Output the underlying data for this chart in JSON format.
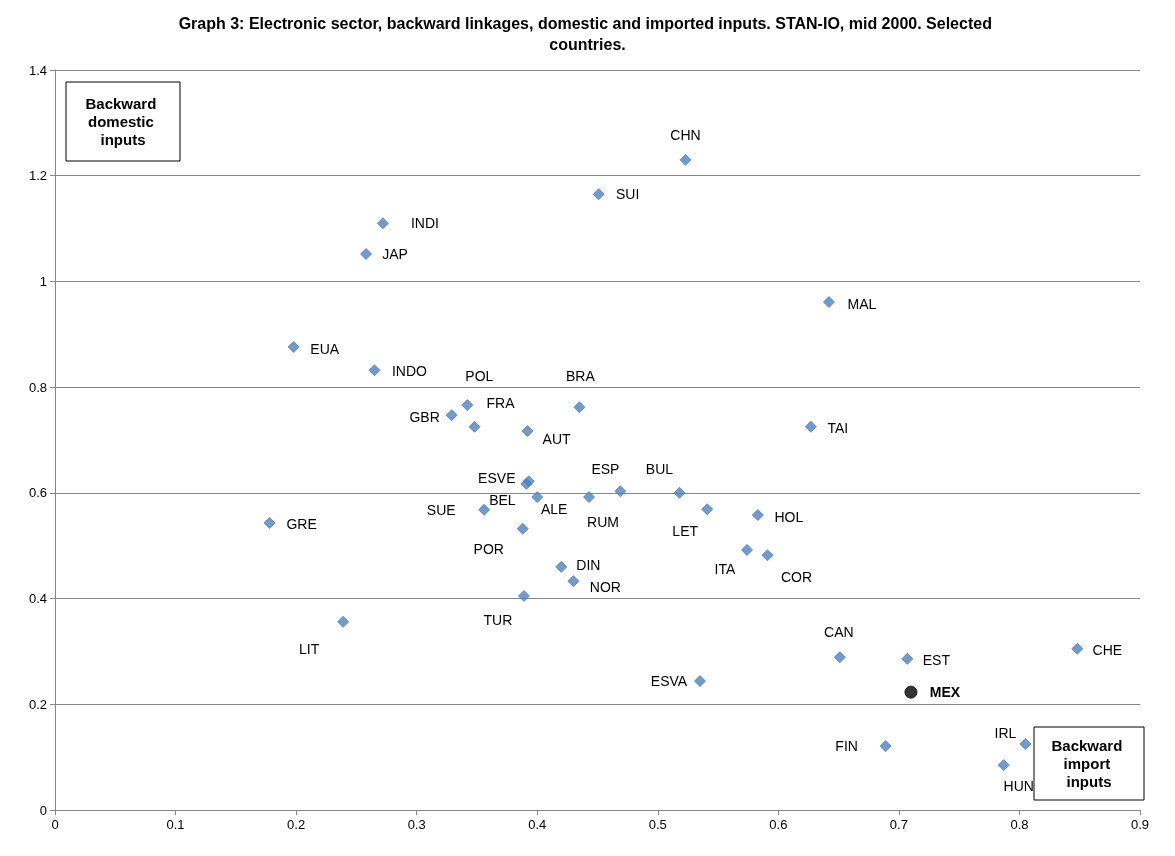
{
  "chart_data": {
    "type": "scatter",
    "title": "Graph 3: Electronic sector, backward linkages, domestic and imported inputs. STAN-IO, mid 2000. Selected countries.",
    "ylabel": "Backward domestic inputs",
    "xlabel": "Backward import inputs",
    "xlim": [
      0,
      0.9
    ],
    "xticks": [
      0,
      0.1,
      0.2,
      0.3,
      0.4,
      0.5,
      0.6,
      0.7,
      0.8,
      0.9
    ],
    "ylim": [
      0,
      1.4
    ],
    "yticks": [
      0,
      0.2,
      0.4,
      0.6,
      0.8,
      1,
      1.2,
      1.4
    ],
    "grid": "y",
    "series": [
      {
        "color": "#4f81bd",
        "marker": "diamond",
        "x": [
          0.523,
          0.451,
          0.272,
          0.258,
          0.642,
          0.198,
          0.265,
          0.342,
          0.435,
          0.329,
          0.348,
          0.392,
          0.627,
          0.393,
          0.391,
          0.4,
          0.469,
          0.443,
          0.518,
          0.541,
          0.356,
          0.583,
          0.178,
          0.388,
          0.574,
          0.591,
          0.42,
          0.43,
          0.389,
          0.239,
          0.651,
          0.707,
          0.848,
          0.535,
          0.689,
          0.805,
          0.787
        ],
        "values": [
          1.23,
          1.165,
          1.11,
          1.052,
          0.961,
          0.876,
          0.832,
          0.766,
          0.762,
          0.747,
          0.725,
          0.717,
          0.725,
          0.622,
          0.617,
          0.592,
          0.603,
          0.592,
          0.6,
          0.569,
          0.568,
          0.558,
          0.543,
          0.532,
          0.492,
          0.482,
          0.46,
          0.433,
          0.405,
          0.356,
          0.289,
          0.286,
          0.305,
          0.244,
          0.121,
          0.125,
          0.085
        ]
      },
      {
        "color": "#000000",
        "marker": "circle",
        "x": [
          0.71
        ],
        "values": [
          0.223
        ]
      }
    ],
    "annotations": [
      {
        "text": "CHN",
        "x": 0.523,
        "y": 1.23
      },
      {
        "text": "SUI",
        "x": 0.451,
        "y": 1.165
      },
      {
        "text": "INDI",
        "x": 0.272,
        "y": 1.11
      },
      {
        "text": "JAP",
        "x": 0.258,
        "y": 1.052
      },
      {
        "text": "MAL",
        "x": 0.642,
        "y": 0.961
      },
      {
        "text": "EUA",
        "x": 0.198,
        "y": 0.876
      },
      {
        "text": "INDO",
        "x": 0.265,
        "y": 0.832
      },
      {
        "text": "POL",
        "x": 0.342,
        "y": 0.766
      },
      {
        "text": "BRA",
        "x": 0.435,
        "y": 0.762
      },
      {
        "text": "GBR",
        "x": 0.329,
        "y": 0.747
      },
      {
        "text": "FRA",
        "x": 0.348,
        "y": 0.725
      },
      {
        "text": "AUT",
        "x": 0.392,
        "y": 0.717
      },
      {
        "text": "TAI",
        "x": 0.627,
        "y": 0.725
      },
      {
        "text": "ESVE",
        "x": 0.393,
        "y": 0.622
      },
      {
        "text": "BEL",
        "x": 0.391,
        "y": 0.617
      },
      {
        "text": "ALE",
        "x": 0.4,
        "y": 0.592
      },
      {
        "text": "ESP",
        "x": 0.469,
        "y": 0.603
      },
      {
        "text": "RUM",
        "x": 0.443,
        "y": 0.592
      },
      {
        "text": "BUL",
        "x": 0.518,
        "y": 0.6
      },
      {
        "text": "LET",
        "x": 0.541,
        "y": 0.569
      },
      {
        "text": "SUE",
        "x": 0.356,
        "y": 0.568
      },
      {
        "text": "HOL",
        "x": 0.583,
        "y": 0.558
      },
      {
        "text": "GRE",
        "x": 0.178,
        "y": 0.543
      },
      {
        "text": "POR",
        "x": 0.388,
        "y": 0.532
      },
      {
        "text": "ITA",
        "x": 0.574,
        "y": 0.492
      },
      {
        "text": "COR",
        "x": 0.591,
        "y": 0.482
      },
      {
        "text": "DIN",
        "x": 0.42,
        "y": 0.46
      },
      {
        "text": "NOR",
        "x": 0.43,
        "y": 0.433
      },
      {
        "text": "TUR",
        "x": 0.389,
        "y": 0.405
      },
      {
        "text": "LIT",
        "x": 0.239,
        "y": 0.356
      },
      {
        "text": "CAN",
        "x": 0.651,
        "y": 0.289
      },
      {
        "text": "EST",
        "x": 0.707,
        "y": 0.286
      },
      {
        "text": "CHE",
        "x": 0.848,
        "y": 0.305
      },
      {
        "text": "ESVA",
        "x": 0.535,
        "y": 0.244
      },
      {
        "text": "FIN",
        "x": 0.689,
        "y": 0.121
      },
      {
        "text": "IRL",
        "x": 0.805,
        "y": 0.125
      },
      {
        "text": "HUN",
        "x": 0.787,
        "y": 0.085
      },
      {
        "text": "MEX",
        "x": 0.71,
        "y": 0.223
      }
    ]
  }
}
